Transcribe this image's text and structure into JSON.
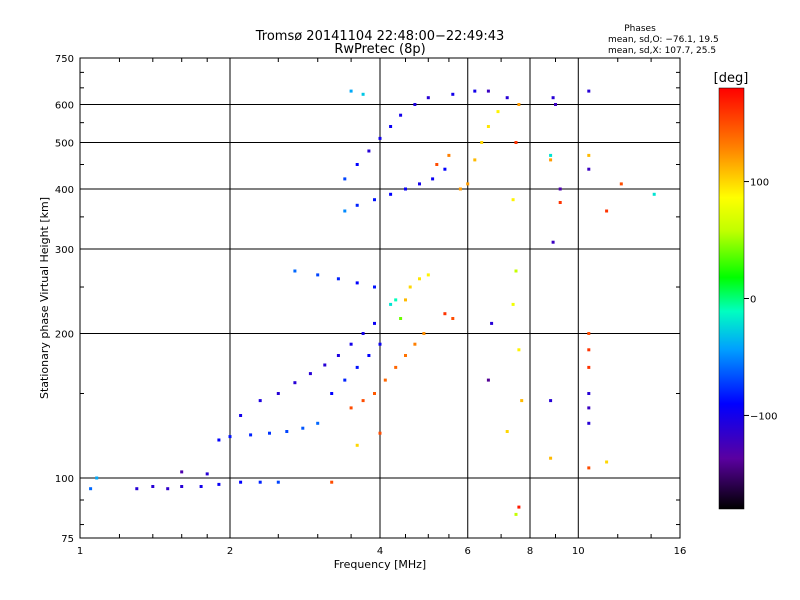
{
  "chart_data": {
    "type": "scatter",
    "title": "Tromsø 20141104 22:48:00−22:49:43",
    "subtitle": "RwPretec (8p)",
    "xlabel": "Frequency [MHz]",
    "ylabel": "Stationary phase Virtual Height [km]",
    "x_scale": "log",
    "y_scale": "log",
    "xlim": [
      1,
      16
    ],
    "ylim": [
      75,
      750
    ],
    "x_ticks": [
      1,
      2,
      4,
      6,
      8,
      10,
      16
    ],
    "x_tick_labels": [
      "1",
      "2",
      "4",
      "6",
      "8",
      "10",
      "16"
    ],
    "y_ticks": [
      75,
      100,
      200,
      300,
      400,
      500,
      600,
      750
    ],
    "y_tick_labels": [
      "75",
      "100",
      "200",
      "300",
      "400",
      "500",
      "600",
      "750"
    ],
    "grid": true,
    "phases_info": {
      "title": "Phases",
      "line_o": "mean, sd,O: −76.1, 19.5",
      "line_x": "mean, sd,X: 107.7, 25.5"
    },
    "colorbar": {
      "label": "[deg]",
      "range": [
        -180,
        180
      ],
      "ticks": [
        100,
        0,
        -100
      ],
      "tick_labels": [
        "100",
        "0",
        "−100"
      ],
      "colormap": "rainbow"
    },
    "series": [
      {
        "values": [
          {
            "x": 1.05,
            "y": 95,
            "c": -60
          },
          {
            "x": 1.08,
            "y": 100,
            "c": -40
          },
          {
            "x": 1.3,
            "y": 95,
            "c": -110
          },
          {
            "x": 1.4,
            "y": 96,
            "c": -110
          },
          {
            "x": 1.5,
            "y": 95,
            "c": -115
          },
          {
            "x": 1.6,
            "y": 96,
            "c": -110
          },
          {
            "x": 1.75,
            "y": 96,
            "c": -100
          },
          {
            "x": 1.9,
            "y": 97,
            "c": -95
          },
          {
            "x": 2.1,
            "y": 98,
            "c": -90
          },
          {
            "x": 2.3,
            "y": 98,
            "c": -80
          },
          {
            "x": 2.5,
            "y": 98,
            "c": -70
          },
          {
            "x": 1.6,
            "y": 103,
            "c": -130
          },
          {
            "x": 1.8,
            "y": 102,
            "c": -110
          },
          {
            "x": 1.9,
            "y": 120,
            "c": -90
          },
          {
            "x": 2.0,
            "y": 122,
            "c": -85
          },
          {
            "x": 2.2,
            "y": 123,
            "c": -80
          },
          {
            "x": 2.4,
            "y": 124,
            "c": -75
          },
          {
            "x": 2.6,
            "y": 125,
            "c": -70
          },
          {
            "x": 2.8,
            "y": 127,
            "c": -65
          },
          {
            "x": 3.0,
            "y": 130,
            "c": -60
          },
          {
            "x": 2.1,
            "y": 135,
            "c": -100
          },
          {
            "x": 2.3,
            "y": 145,
            "c": -105
          },
          {
            "x": 2.5,
            "y": 150,
            "c": -110
          },
          {
            "x": 2.7,
            "y": 158,
            "c": -110
          },
          {
            "x": 2.9,
            "y": 165,
            "c": -110
          },
          {
            "x": 3.1,
            "y": 172,
            "c": -110
          },
          {
            "x": 3.3,
            "y": 180,
            "c": -105
          },
          {
            "x": 3.5,
            "y": 190,
            "c": -100
          },
          {
            "x": 3.7,
            "y": 200,
            "c": -100
          },
          {
            "x": 3.9,
            "y": 210,
            "c": -95
          },
          {
            "x": 3.2,
            "y": 150,
            "c": -90
          },
          {
            "x": 3.4,
            "y": 160,
            "c": -80
          },
          {
            "x": 3.6,
            "y": 170,
            "c": -85
          },
          {
            "x": 3.8,
            "y": 180,
            "c": -90
          },
          {
            "x": 4.0,
            "y": 190,
            "c": -95
          },
          {
            "x": 3.5,
            "y": 140,
            "c": 150
          },
          {
            "x": 3.7,
            "y": 145,
            "c": 150
          },
          {
            "x": 3.9,
            "y": 150,
            "c": 145
          },
          {
            "x": 4.1,
            "y": 160,
            "c": 140
          },
          {
            "x": 4.3,
            "y": 170,
            "c": 140
          },
          {
            "x": 4.5,
            "y": 180,
            "c": 135
          },
          {
            "x": 4.7,
            "y": 190,
            "c": 130
          },
          {
            "x": 4.9,
            "y": 200,
            "c": 125
          },
          {
            "x": 2.7,
            "y": 270,
            "c": -60
          },
          {
            "x": 3.0,
            "y": 265,
            "c": -70
          },
          {
            "x": 3.3,
            "y": 260,
            "c": -80
          },
          {
            "x": 3.6,
            "y": 255,
            "c": -90
          },
          {
            "x": 3.9,
            "y": 250,
            "c": -85
          },
          {
            "x": 4.2,
            "y": 230,
            "c": -20
          },
          {
            "x": 4.3,
            "y": 235,
            "c": -10
          },
          {
            "x": 4.5,
            "y": 235,
            "c": 110
          },
          {
            "x": 4.6,
            "y": 250,
            "c": 100
          },
          {
            "x": 4.8,
            "y": 260,
            "c": 95
          },
          {
            "x": 5.0,
            "y": 265,
            "c": 90
          },
          {
            "x": 4.4,
            "y": 215,
            "c": 40
          },
          {
            "x": 5.4,
            "y": 220,
            "c": 160
          },
          {
            "x": 5.6,
            "y": 215,
            "c": 150
          },
          {
            "x": 6.6,
            "y": 160,
            "c": -140
          },
          {
            "x": 6.7,
            "y": 210,
            "c": -110
          },
          {
            "x": 7.4,
            "y": 230,
            "c": 80
          },
          {
            "x": 7.5,
            "y": 270,
            "c": 60
          },
          {
            "x": 3.4,
            "y": 360,
            "c": -50
          },
          {
            "x": 3.6,
            "y": 370,
            "c": -80
          },
          {
            "x": 3.9,
            "y": 380,
            "c": -85
          },
          {
            "x": 4.2,
            "y": 390,
            "c": -90
          },
          {
            "x": 4.5,
            "y": 400,
            "c": -95
          },
          {
            "x": 4.8,
            "y": 410,
            "c": -100
          },
          {
            "x": 5.1,
            "y": 420,
            "c": -95
          },
          {
            "x": 5.4,
            "y": 440,
            "c": -90
          },
          {
            "x": 3.4,
            "y": 420,
            "c": -70
          },
          {
            "x": 3.6,
            "y": 450,
            "c": -90
          },
          {
            "x": 3.8,
            "y": 480,
            "c": -110
          },
          {
            "x": 4.0,
            "y": 510,
            "c": -100
          },
          {
            "x": 4.2,
            "y": 540,
            "c": -95
          },
          {
            "x": 4.4,
            "y": 570,
            "c": -100
          },
          {
            "x": 4.7,
            "y": 600,
            "c": -105
          },
          {
            "x": 5.0,
            "y": 620,
            "c": -110
          },
          {
            "x": 5.2,
            "y": 450,
            "c": 150
          },
          {
            "x": 5.5,
            "y": 470,
            "c": 130
          },
          {
            "x": 5.8,
            "y": 400,
            "c": 120
          },
          {
            "x": 6.0,
            "y": 410,
            "c": 120
          },
          {
            "x": 6.2,
            "y": 460,
            "c": 110
          },
          {
            "x": 6.4,
            "y": 500,
            "c": 100
          },
          {
            "x": 6.6,
            "y": 540,
            "c": 95
          },
          {
            "x": 6.9,
            "y": 580,
            "c": 90
          },
          {
            "x": 3.5,
            "y": 640,
            "c": -40
          },
          {
            "x": 3.7,
            "y": 630,
            "c": -30
          },
          {
            "x": 5.6,
            "y": 630,
            "c": -100
          },
          {
            "x": 6.2,
            "y": 640,
            "c": -100
          },
          {
            "x": 6.6,
            "y": 640,
            "c": -120
          },
          {
            "x": 7.2,
            "y": 620,
            "c": -110
          },
          {
            "x": 7.6,
            "y": 600,
            "c": 120
          },
          {
            "x": 7.5,
            "y": 500,
            "c": 160
          },
          {
            "x": 7.4,
            "y": 380,
            "c": 90
          },
          {
            "x": 8.8,
            "y": 470,
            "c": -20
          },
          {
            "x": 8.8,
            "y": 460,
            "c": 120
          },
          {
            "x": 9.2,
            "y": 400,
            "c": -130
          },
          {
            "x": 9.2,
            "y": 375,
            "c": 160
          },
          {
            "x": 10.5,
            "y": 470,
            "c": 110
          },
          {
            "x": 10.5,
            "y": 440,
            "c": -120
          },
          {
            "x": 11.4,
            "y": 360,
            "c": 160
          },
          {
            "x": 12.2,
            "y": 410,
            "c": 150
          },
          {
            "x": 14.2,
            "y": 390,
            "c": -20
          },
          {
            "x": 8.9,
            "y": 310,
            "c": -120
          },
          {
            "x": 8.9,
            "y": 620,
            "c": -110
          },
          {
            "x": 9.0,
            "y": 600,
            "c": -120
          },
          {
            "x": 10.5,
            "y": 640,
            "c": -110
          },
          {
            "x": 10.5,
            "y": 200,
            "c": 150
          },
          {
            "x": 10.5,
            "y": 185,
            "c": 160
          },
          {
            "x": 10.5,
            "y": 170,
            "c": 160
          },
          {
            "x": 10.5,
            "y": 150,
            "c": -110
          },
          {
            "x": 10.5,
            "y": 140,
            "c": -120
          },
          {
            "x": 10.5,
            "y": 130,
            "c": -110
          },
          {
            "x": 10.5,
            "y": 105,
            "c": 150
          },
          {
            "x": 11.4,
            "y": 108,
            "c": 100
          },
          {
            "x": 8.8,
            "y": 145,
            "c": -110
          },
          {
            "x": 8.8,
            "y": 110,
            "c": 110
          },
          {
            "x": 7.2,
            "y": 125,
            "c": 100
          },
          {
            "x": 7.6,
            "y": 185,
            "c": 90
          },
          {
            "x": 7.7,
            "y": 145,
            "c": 110
          },
          {
            "x": 7.6,
            "y": 87,
            "c": 170
          },
          {
            "x": 7.5,
            "y": 84,
            "c": 60
          },
          {
            "x": 3.2,
            "y": 98,
            "c": 150
          },
          {
            "x": 3.6,
            "y": 117,
            "c": 100
          },
          {
            "x": 4.0,
            "y": 124,
            "c": 150
          }
        ]
      }
    ]
  }
}
